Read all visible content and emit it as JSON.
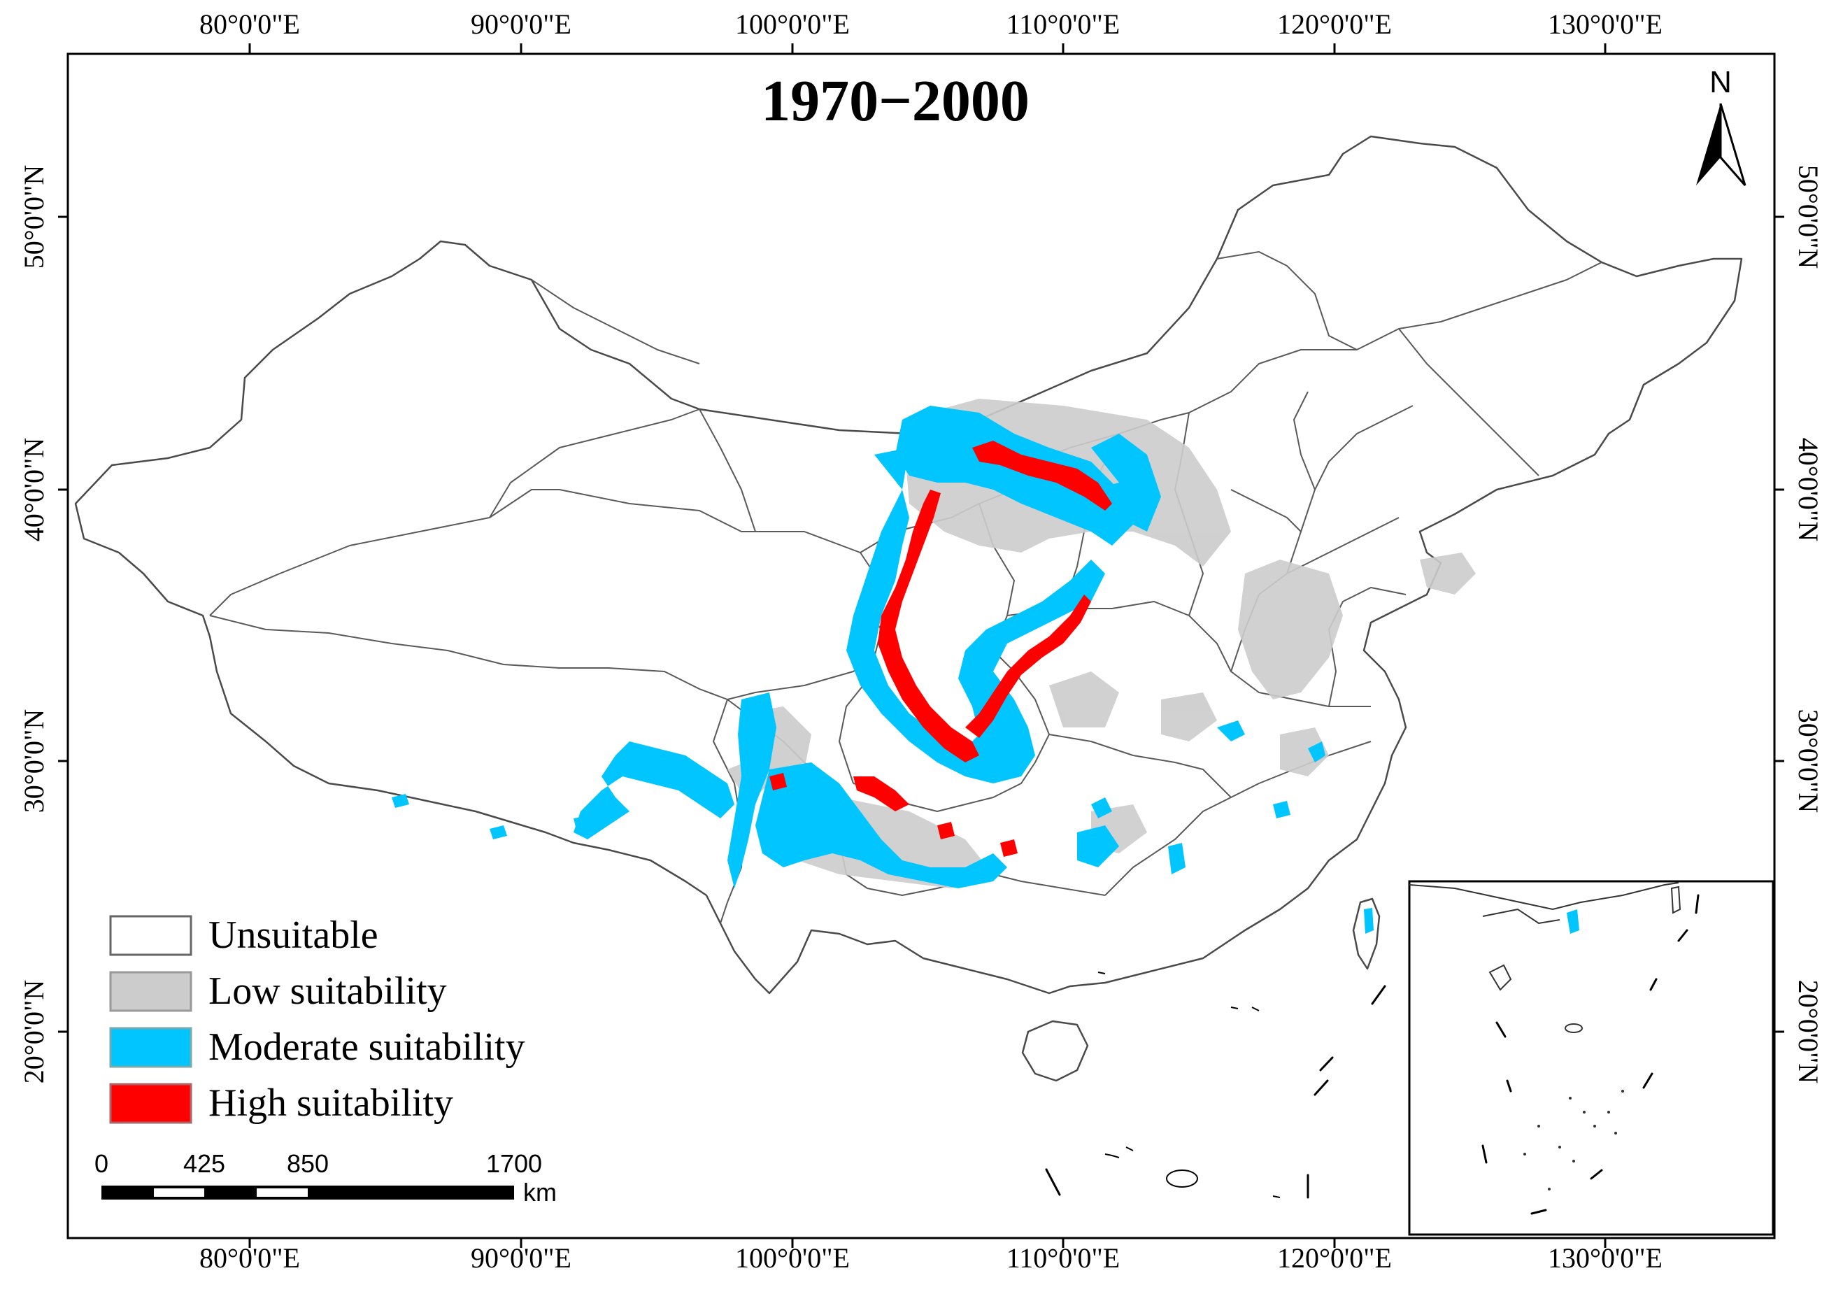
{
  "map": {
    "title": "1970−2000",
    "north_label": "N",
    "lon_labels": [
      "80°0'0\"E",
      "90°0'0\"E",
      "100°0'0\"E",
      "110°0'0\"E",
      "120°0'0\"E",
      "130°0'0\"E"
    ],
    "lat_labels": [
      "50°0'0\"N",
      "40°0'0\"N",
      "30°0'0\"N",
      "20°0'0\"N"
    ],
    "legend": [
      {
        "label": "Unsuitable",
        "color": "#ffffff"
      },
      {
        "label": "Low suitability",
        "color": "#cccccc"
      },
      {
        "label": "Moderate suitability",
        "color": "#00c5ff"
      },
      {
        "label": "High suitability",
        "color": "#ff0000"
      }
    ],
    "scale_bar": {
      "ticks": [
        "0",
        "425",
        "850",
        "1700"
      ],
      "unit": "km"
    },
    "colors": {
      "unsuitable": "#ffffff",
      "low": "#cccccc",
      "moderate": "#00c5ff",
      "high": "#ff0000",
      "frame": "#000000",
      "border": "#5a5a5a"
    }
  }
}
